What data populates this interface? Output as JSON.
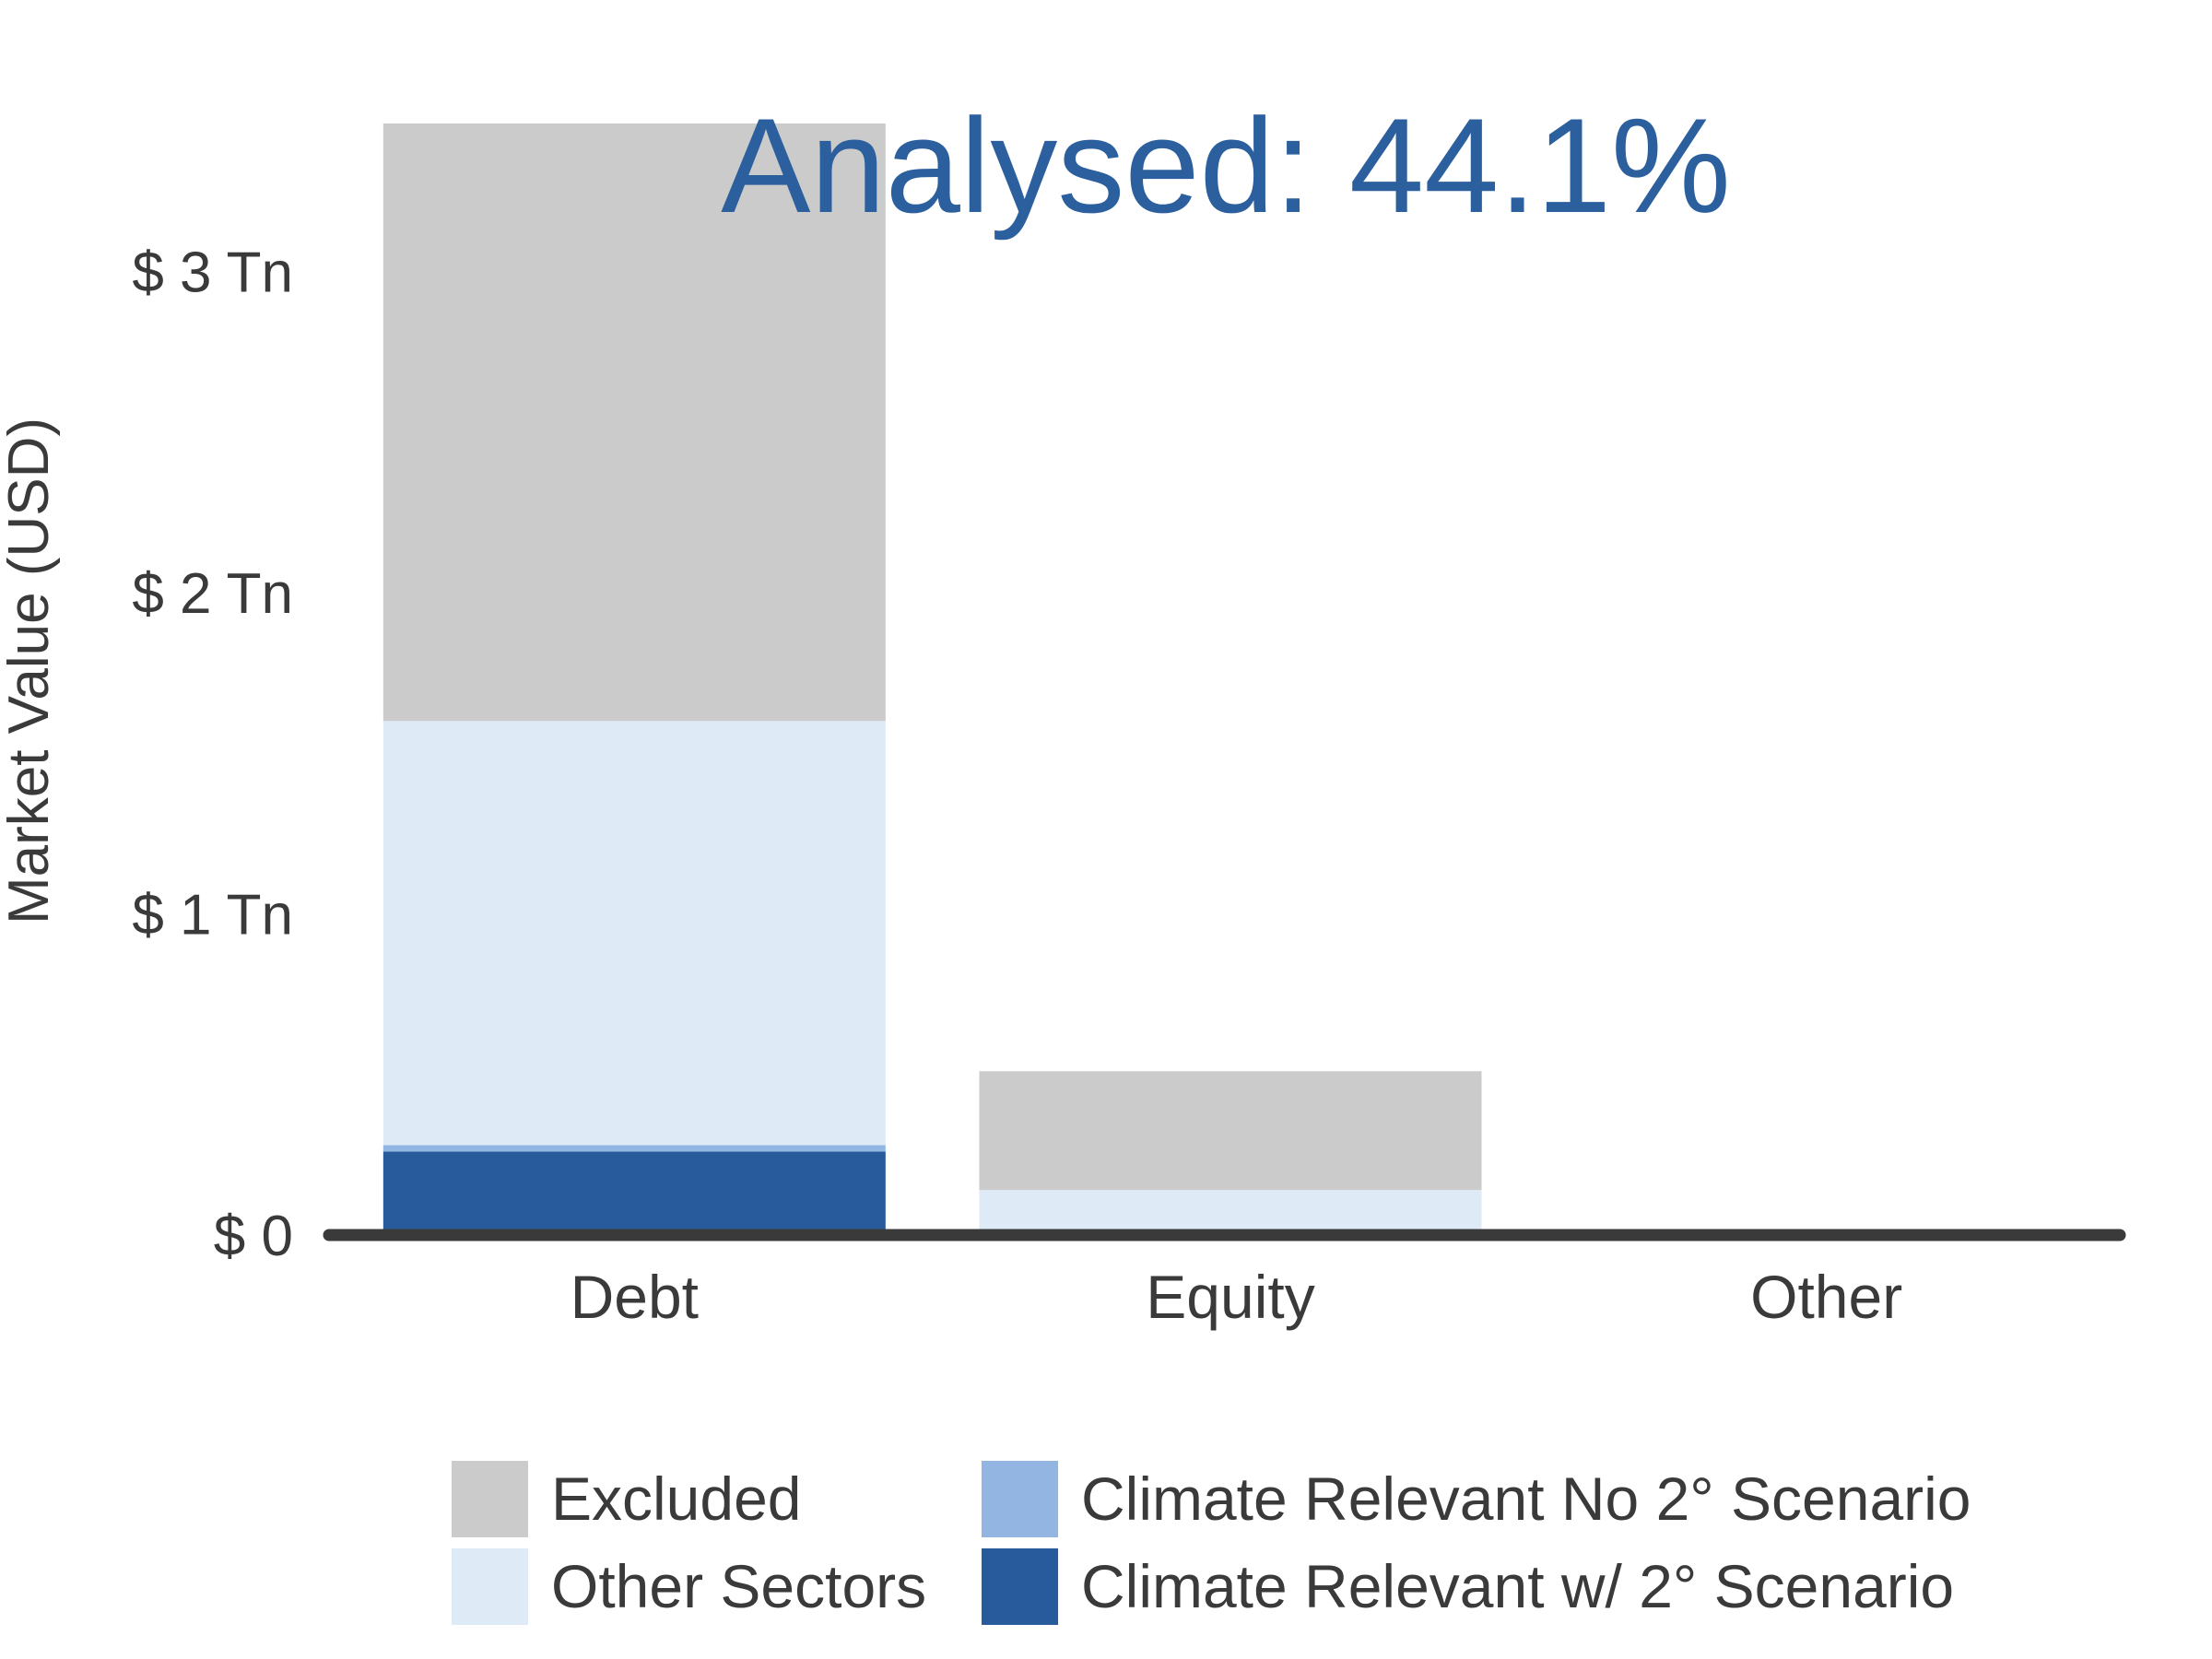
{
  "chart_data": {
    "type": "bar",
    "stacked": true,
    "annotation": "Analysed: 44.1%",
    "xlabel": "",
    "ylabel": "Market Value (USD)",
    "categories": [
      "Debt",
      "Equity",
      "Other"
    ],
    "ylim": [
      0,
      3.5
    ],
    "yticks": [
      {
        "value": 0,
        "label": "$ 0"
      },
      {
        "value": 1,
        "label": "$ 1 Tn"
      },
      {
        "value": 2,
        "label": "$ 2 Tn"
      },
      {
        "value": 3,
        "label": "$ 3 Tn"
      }
    ],
    "series": [
      {
        "name": "Climate Relevant w/ 2° Scenario",
        "color": "#275b9b",
        "values": [
          0.26,
          0,
          0
        ]
      },
      {
        "name": "Climate Relevant No 2° Scenario",
        "color": "#93b5e1",
        "values": [
          0.02,
          0,
          0
        ]
      },
      {
        "name": "Other Sectors",
        "color": "#deeaf6",
        "values": [
          1.32,
          0.14,
          0
        ]
      },
      {
        "name": "Excluded",
        "color": "#cbcbcb",
        "values": [
          1.86,
          0.37,
          0
        ]
      }
    ],
    "legend_order": [
      "Excluded",
      "Climate Relevant No 2° Scenario",
      "Other Sectors",
      "Climate Relevant w/ 2° Scenario"
    ],
    "legend_position": "bottom",
    "grid": false
  }
}
